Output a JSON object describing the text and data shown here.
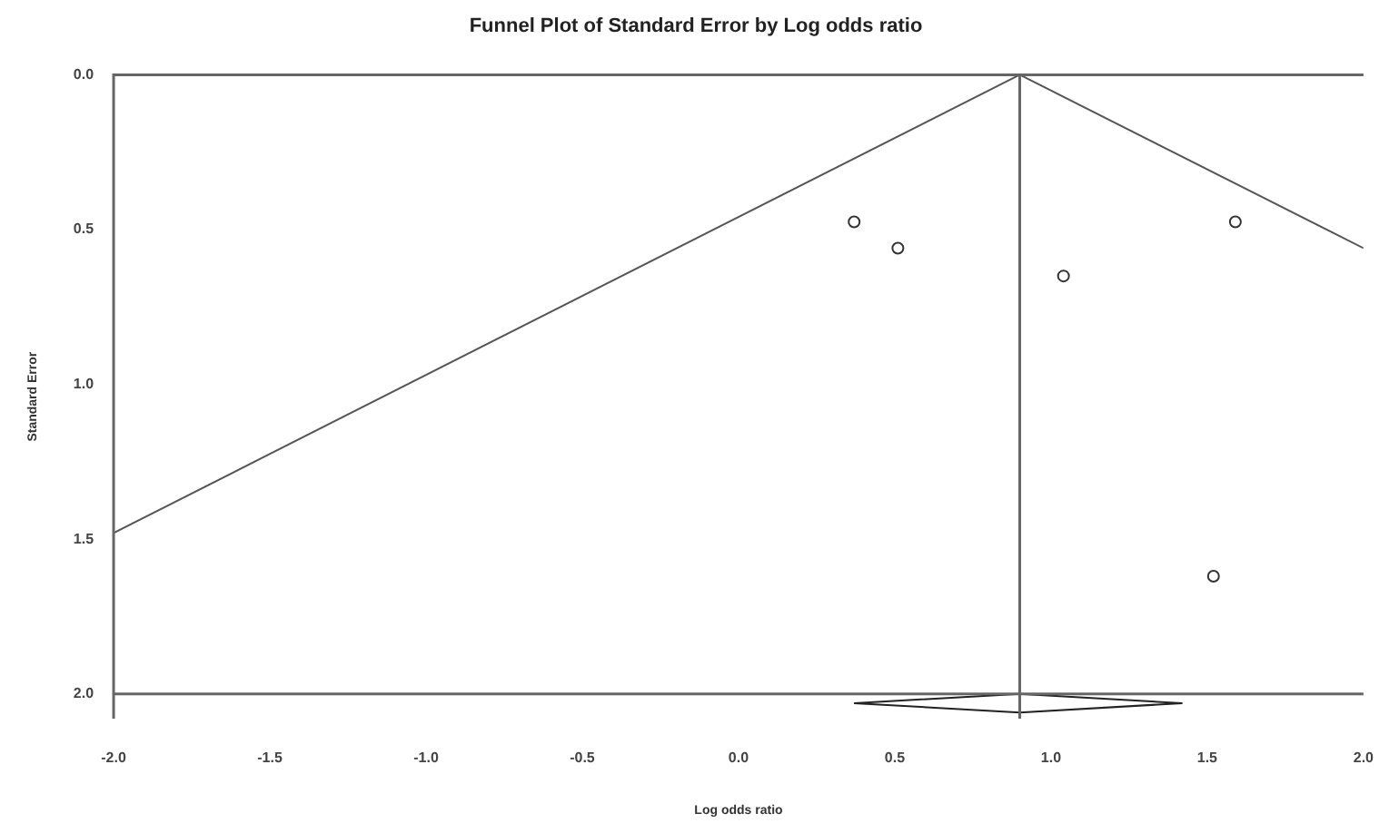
{
  "chart_data": {
    "type": "scatter",
    "title": "Funnel Plot of Standard Error by Log odds ratio",
    "xlabel": "Log odds ratio",
    "ylabel": "Standard Error",
    "xlim": [
      -2.0,
      2.0
    ],
    "xticks": [
      {
        "value": -2.0,
        "label": "-2.0"
      },
      -1.5,
      {
        "value": -1.0,
        "label": "-1.0"
      },
      -0.5,
      {
        "value": 0.0,
        "label": "0.0"
      },
      0.5,
      {
        "value": 1.0,
        "label": "1.0"
      },
      1.5,
      {
        "value": 2.0,
        "label": "2.0"
      }
    ],
    "ylim": [
      2.08,
      0.0
    ],
    "yticks": [
      {
        "value": 0.0,
        "label": "0.0"
      },
      0.5,
      {
        "value": 1.0,
        "label": "1.0"
      },
      1.5,
      {
        "value": 2.0,
        "label": "2.0"
      }
    ],
    "grid": false,
    "legend": false,
    "ref_lines": [
      {
        "axis": "x",
        "value": 0.9,
        "color": "#666666"
      },
      {
        "axis": "y",
        "value": 2.0,
        "color": "#666666"
      }
    ],
    "series": [
      {
        "color": "#333333",
        "marker": "circle",
        "x": [
          0.37,
          0.51,
          1.04,
          1.59,
          1.52
        ],
        "values": [
          0.475,
          0.56,
          0.65,
          0.475,
          1.62
        ]
      },
      {
        "type": "line",
        "marker": "none",
        "color": "#555555",
        "x": [
          -2.0,
          0.9,
          2.0
        ],
        "values": [
          1.48,
          0.0,
          0.56
        ]
      },
      {
        "type": "line",
        "marker": "none",
        "color": "#222222",
        "x": [
          0.37,
          0.9,
          1.42
        ],
        "values": [
          2.03,
          2.0,
          2.03
        ]
      },
      {
        "type": "line",
        "marker": "none",
        "color": "#222222",
        "x": [
          0.37,
          0.9,
          1.42
        ],
        "values": [
          2.03,
          2.06,
          2.03
        ]
      }
    ]
  }
}
